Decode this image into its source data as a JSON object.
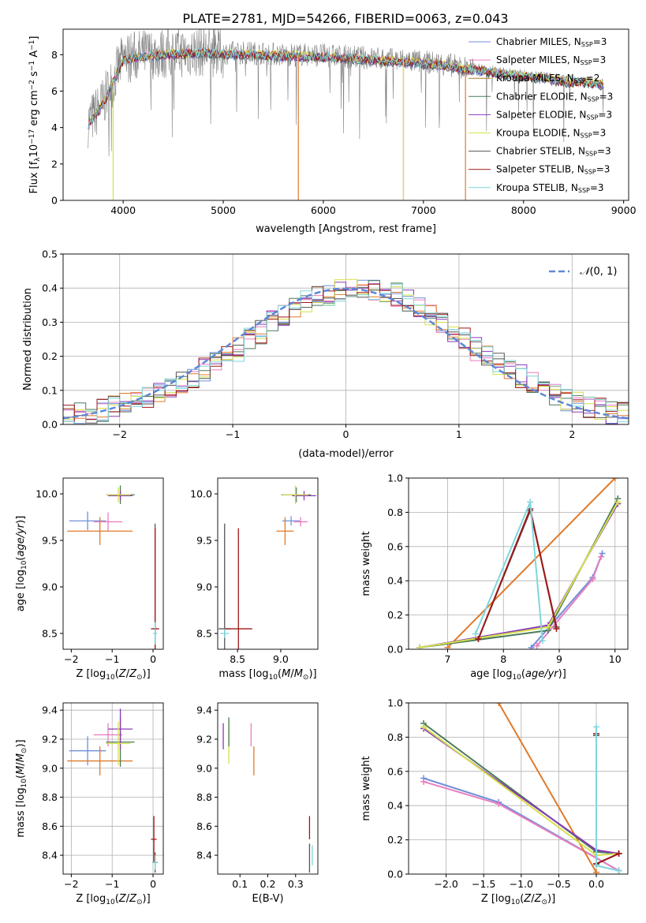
{
  "title": "PLATE=2781, MJD=54266, FIBERID=0063, z=0.043",
  "colors": {
    "Chabrier MILES": "#6f8fdc",
    "Salpeter MILES": "#e87fc0",
    "Kroupa MILES": "#b07c1a",
    "Chabrier ELODIE": "#4a7a5a",
    "Salpeter ELODIE": "#8a3ab8",
    "Kroupa ELODIE": "#d6e04a",
    "Chabrier STELIB": "#555555",
    "Salpeter STELIB": "#a01818",
    "Kroupa STELIB": "#7fd6dc",
    "data": "#808080",
    "orange": "#e07a2a",
    "gaussian": "#5f87d6",
    "grid": "#b0b0b0"
  },
  "chart_data": [
    {
      "type": "line",
      "title": "PLATE=2781, MJD=54266, FIBERID=0063, z=0.043",
      "xlabel": "wavelength [Angstrom, rest frame]",
      "ylabel": "Flux [f_λ 10^-17 erg cm^-2 s^-1 A^-1]",
      "xlim": [
        3400,
        9050
      ],
      "ylim": [
        0,
        9.4
      ],
      "xticks": [
        4000,
        5000,
        6000,
        7000,
        8000,
        9000
      ],
      "yticks": [
        0,
        2,
        4,
        6,
        8
      ],
      "grid": false,
      "legend_position": "top-right",
      "legend": [
        {
          "label": "Chabrier MILES, N",
          "sub": "SSP",
          "suffix": "=3"
        },
        {
          "label": "Salpeter MILES, N",
          "sub": "SSP",
          "suffix": "=3"
        },
        {
          "label": "Kroupa MILES, N",
          "sub": "SSP",
          "suffix": "=2"
        },
        {
          "label": "Chabrier ELODIE, N",
          "sub": "SSP",
          "suffix": "=3"
        },
        {
          "label": "Salpeter ELODIE, N",
          "sub": "SSP",
          "suffix": "=3"
        },
        {
          "label": "Kroupa ELODIE, N",
          "sub": "SSP",
          "suffix": "=3"
        },
        {
          "label": "Chabrier STELIB, N",
          "sub": "SSP",
          "suffix": "=3"
        },
        {
          "label": "Salpeter STELIB, N",
          "sub": "SSP",
          "suffix": "=3"
        },
        {
          "label": "Kroupa STELIB, N",
          "sub": "SSP",
          "suffix": "=3"
        }
      ],
      "continuum": {
        "x": [
          3650,
          3700,
          3800,
          3900,
          4000,
          4200,
          4500,
          4800,
          5000,
          5300,
          5600,
          5900,
          6200,
          6500,
          6800,
          7000,
          7200,
          7400,
          7600,
          7800,
          8000,
          8200,
          8400,
          8600,
          8800
        ],
        "y": [
          4.3,
          4.6,
          5.4,
          6.6,
          7.8,
          8.0,
          8.1,
          8.2,
          8.1,
          8.1,
          8.0,
          8.0,
          7.9,
          7.8,
          7.7,
          7.6,
          7.5,
          7.3,
          7.2,
          7.0,
          6.9,
          6.8,
          6.6,
          6.6,
          6.4
        ]
      }
    },
    {
      "type": "line",
      "xlabel": "(data-model)/error",
      "ylabel": "Normed distribution",
      "xlim": [
        -2.5,
        2.5
      ],
      "ylim": [
        0,
        0.5
      ],
      "xticks": [
        -2,
        -1,
        0,
        1,
        2
      ],
      "yticks": [
        0.0,
        0.1,
        0.2,
        0.3,
        0.4,
        0.5
      ],
      "grid": true,
      "legend_position": "top-right",
      "legend": [
        {
          "label": "N(0,1)"
        }
      ],
      "bin_width": 0.1,
      "bins_start": -2.5,
      "reference_histogram": [
        0.025,
        0.03,
        0.035,
        0.04,
        0.05,
        0.06,
        0.065,
        0.08,
        0.09,
        0.11,
        0.125,
        0.14,
        0.16,
        0.18,
        0.2,
        0.22,
        0.25,
        0.27,
        0.3,
        0.32,
        0.34,
        0.36,
        0.37,
        0.38,
        0.39,
        0.4,
        0.405,
        0.4,
        0.39,
        0.38,
        0.36,
        0.34,
        0.32,
        0.3,
        0.27,
        0.25,
        0.22,
        0.2,
        0.18,
        0.16,
        0.14,
        0.12,
        0.1,
        0.09,
        0.075,
        0.065,
        0.055,
        0.045,
        0.035,
        0.03
      ]
    },
    {
      "type": "scatter",
      "xlabel": "Z [log10(Z/Z_sun)]",
      "ylabel": "age [log10(age/yr)]",
      "xlim": [
        -2.2,
        0.25
      ],
      "ylim": [
        8.33,
        10.17
      ],
      "xticks": [
        -2,
        -1,
        0
      ],
      "yticks": [
        8.5,
        9.0,
        9.5,
        10.0
      ],
      "grid": false,
      "points": [
        {
          "series": "Chabrier MILES",
          "x": -1.6,
          "y": 9.71,
          "xerr": 0.45,
          "yerr": 0.1
        },
        {
          "series": "Salpeter MILES",
          "x": -1.1,
          "y": 9.7,
          "xerr": 0.35,
          "yerr": 0.1
        },
        {
          "series": "Kroupa MILES",
          "x": -1.3,
          "y": 9.6,
          "xerr": 0.8,
          "yerr": 0.15
        },
        {
          "series": "Chabrier ELODIE",
          "x": -0.8,
          "y": 9.99,
          "xerr": 0.35,
          "yerr": 0.1
        },
        {
          "series": "Salpeter ELODIE",
          "x": -0.8,
          "y": 9.98,
          "xerr": 0.3,
          "yerr": 0.05
        },
        {
          "series": "Kroupa ELODIE",
          "x": -0.85,
          "y": 9.99,
          "xerr": 0.3,
          "yerr": 0.08
        },
        {
          "series": "Chabrier STELIB",
          "x": 0.05,
          "y": 8.55,
          "xerr": 0.05,
          "yerr": 1.13
        },
        {
          "series": "Salpeter STELIB",
          "x": 0.05,
          "y": 8.55,
          "xerr": 0.1,
          "yerr": 1.08
        },
        {
          "series": "Kroupa STELIB",
          "x": 0.05,
          "y": 8.5,
          "xerr": 0.05,
          "yerr": 0.12
        }
      ]
    },
    {
      "type": "scatter",
      "xlabel": "mass [log10(M/M_sun)]",
      "ylabel": "",
      "xlim": [
        8.27,
        9.43
      ],
      "ylim": [
        8.33,
        10.17
      ],
      "xticks": [
        8.5,
        9.0
      ],
      "yticks": [
        8.5,
        9.0,
        9.5,
        10.0
      ],
      "grid": false,
      "points": [
        {
          "series": "Chabrier MILES",
          "x": 9.12,
          "y": 9.71,
          "xerr": 0.1,
          "yerr": 0.05
        },
        {
          "series": "Salpeter MILES",
          "x": 9.23,
          "y": 9.7,
          "xerr": 0.08,
          "yerr": 0.05
        },
        {
          "series": "Kroupa MILES",
          "x": 9.05,
          "y": 9.6,
          "xerr": 0.1,
          "yerr": 0.15
        },
        {
          "series": "Chabrier ELODIE",
          "x": 9.18,
          "y": 9.99,
          "xerr": 0.17,
          "yerr": 0.08
        },
        {
          "series": "Salpeter ELODIE",
          "x": 9.27,
          "y": 9.98,
          "xerr": 0.14,
          "yerr": 0.05
        },
        {
          "series": "Kroupa ELODIE",
          "x": 9.17,
          "y": 9.99,
          "xerr": 0.15,
          "yerr": 0.1
        },
        {
          "series": "Chabrier STELIB",
          "x": 8.35,
          "y": 8.55,
          "xerr": 0.07,
          "yerr": 1.13
        },
        {
          "series": "Salpeter STELIB",
          "x": 8.51,
          "y": 8.55,
          "xerr": 0.16,
          "yerr": 1.08
        },
        {
          "series": "Kroupa STELIB",
          "x": 8.35,
          "y": 8.5,
          "xerr": 0.05,
          "yerr": 0.05
        }
      ]
    },
    {
      "type": "line",
      "xlabel": "age [log10(age/yr)]",
      "ylabel": "mass weight",
      "xlim": [
        6.3,
        10.23
      ],
      "ylim": [
        0,
        1.0
      ],
      "xticks": [
        7,
        8,
        9,
        10
      ],
      "yticks": [
        0.0,
        0.2,
        0.4,
        0.6,
        0.8,
        1.0
      ],
      "grid": true,
      "series": [
        {
          "name": "Chabrier MILES",
          "x": [
            8.5,
            9.6,
            9.77
          ],
          "y": [
            0.01,
            0.42,
            0.56
          ]
        },
        {
          "name": "Salpeter MILES",
          "x": [
            8.6,
            9.6,
            9.75
          ],
          "y": [
            0.02,
            0.41,
            0.54
          ]
        },
        {
          "name": "Kroupa MILES",
          "x": [
            7.0,
            10.0
          ],
          "y": [
            0.01,
            1.0
          ]
        },
        {
          "name": "Chabrier ELODIE",
          "x": [
            6.5,
            8.8,
            10.05
          ],
          "y": [
            0.01,
            0.11,
            0.88
          ]
        },
        {
          "name": "Salpeter ELODIE",
          "x": [
            6.5,
            8.8,
            10.05
          ],
          "y": [
            0.01,
            0.14,
            0.85
          ]
        },
        {
          "name": "Kroupa ELODIE",
          "x": [
            6.5,
            8.8,
            10.05
          ],
          "y": [
            0.01,
            0.13,
            0.86
          ]
        },
        {
          "name": "Chabrier STELIB",
          "x": [
            7.55,
            8.48,
            8.95
          ],
          "y": [
            0.06,
            0.81,
            0.13
          ]
        },
        {
          "name": "Salpeter STELIB",
          "x": [
            7.55,
            8.48,
            8.95
          ],
          "y": [
            0.06,
            0.82,
            0.12
          ]
        },
        {
          "name": "Kroupa STELIB",
          "x": [
            7.5,
            8.48,
            8.7
          ],
          "y": [
            0.09,
            0.86,
            0.05
          ]
        }
      ]
    },
    {
      "type": "scatter",
      "xlabel": "Z [log10(Z/Z_sun)]",
      "ylabel": "mass [log10(M/M_sun)]",
      "xlim": [
        -2.2,
        0.25
      ],
      "ylim": [
        8.27,
        9.45
      ],
      "xticks": [
        -2,
        -1,
        0
      ],
      "yticks": [
        8.4,
        8.6,
        8.8,
        9.0,
        9.2,
        9.4
      ],
      "grid": true,
      "points": [
        {
          "series": "Chabrier MILES",
          "x": -1.6,
          "y": 9.12,
          "xerr": 0.45,
          "yerr": 0.1
        },
        {
          "series": "Salpeter MILES",
          "x": -1.1,
          "y": 9.23,
          "xerr": 0.35,
          "yerr": 0.08
        },
        {
          "series": "Kroupa MILES",
          "x": -1.3,
          "y": 9.05,
          "xerr": 0.8,
          "yerr": 0.1
        },
        {
          "series": "Chabrier ELODIE",
          "x": -0.8,
          "y": 9.18,
          "xerr": 0.35,
          "yerr": 0.17
        },
        {
          "series": "Salpeter ELODIE",
          "x": -0.8,
          "y": 9.27,
          "xerr": 0.3,
          "yerr": 0.14
        },
        {
          "series": "Kroupa ELODIE",
          "x": -0.85,
          "y": 9.17,
          "xerr": 0.3,
          "yerr": 0.15
        },
        {
          "series": "Chabrier STELIB",
          "x": 0.05,
          "y": 8.35,
          "xerr": 0.06,
          "yerr": 0.07
        },
        {
          "series": "Salpeter STELIB",
          "x": 0.02,
          "y": 8.51,
          "xerr": 0.07,
          "yerr": 0.16
        },
        {
          "series": "Kroupa STELIB",
          "x": 0.05,
          "y": 8.35,
          "xerr": 0.05,
          "yerr": 0.05
        }
      ]
    },
    {
      "type": "scatter",
      "xlabel": "E(B-V)",
      "ylabel": "",
      "xlim": [
        0.02,
        0.38
      ],
      "ylim": [
        8.27,
        9.45
      ],
      "xticks": [
        0.1,
        0.2,
        0.3
      ],
      "yticks": [
        8.4,
        8.6,
        8.8,
        9.0,
        9.2,
        9.4
      ],
      "grid": false,
      "points": [
        {
          "series": "Salpeter MILES",
          "x": 0.14,
          "y": 9.23,
          "xerr": 0,
          "yerr": 0.08
        },
        {
          "series": "Kroupa MILES",
          "x": 0.15,
          "y": 9.05,
          "xerr": 0,
          "yerr": 0.1
        },
        {
          "series": "Salpeter ELODIE",
          "x": 0.04,
          "y": 9.22,
          "xerr": 0,
          "yerr": 0.09
        },
        {
          "series": "Kroupa ELODIE",
          "x": 0.06,
          "y": 9.18,
          "xerr": 0,
          "yerr": 0.15
        },
        {
          "series": "Chabrier ELODIE",
          "x": 0.06,
          "y": 9.25,
          "xerr": 0,
          "yerr": 0.1
        },
        {
          "series": "Chabrier STELIB",
          "x": 0.35,
          "y": 8.38,
          "xerr": 0,
          "yerr": 0.1
        },
        {
          "series": "Salpeter STELIB",
          "x": 0.35,
          "y": 8.59,
          "xerr": 0,
          "yerr": 0.08
        },
        {
          "series": "Kroupa STELIB",
          "x": 0.36,
          "y": 8.4,
          "xerr": 0,
          "yerr": 0.07
        }
      ]
    },
    {
      "type": "line",
      "xlabel": "Z [log10(Z/Z_sun)]",
      "ylabel": "mass weight",
      "xlim": [
        -2.5,
        0.42
      ],
      "ylim": [
        0,
        1.0
      ],
      "xticks": [
        -2.0,
        -1.5,
        -1.0,
        -0.5,
        0.0
      ],
      "yticks": [
        0.0,
        0.2,
        0.4,
        0.6,
        0.8,
        1.0
      ],
      "grid": true,
      "series": [
        {
          "name": "Chabrier MILES",
          "x": [
            -2.3,
            -1.3,
            0.3
          ],
          "y": [
            0.56,
            0.42,
            0.02
          ]
        },
        {
          "name": "Salpeter MILES",
          "x": [
            -2.3,
            -1.3,
            0.3
          ],
          "y": [
            0.54,
            0.41,
            0.02
          ]
        },
        {
          "name": "Kroupa MILES",
          "x": [
            -1.3,
            0.0
          ],
          "y": [
            1.0,
            0.01
          ]
        },
        {
          "name": "Chabrier ELODIE",
          "x": [
            -2.3,
            0.0,
            0.3
          ],
          "y": [
            0.88,
            0.13,
            0.12
          ]
        },
        {
          "name": "Salpeter ELODIE",
          "x": [
            -2.3,
            0.0,
            0.3
          ],
          "y": [
            0.85,
            0.14,
            0.12
          ]
        },
        {
          "name": "Kroupa ELODIE",
          "x": [
            -2.3,
            0.0,
            0.3
          ],
          "y": [
            0.86,
            0.11,
            0.12
          ]
        },
        {
          "name": "Chabrier STELIB",
          "x": [
            0.0,
            0.0,
            0.3
          ],
          "y": [
            0.81,
            0.06,
            0.12
          ]
        },
        {
          "name": "Salpeter STELIB",
          "x": [
            0.0,
            0.0,
            0.3
          ],
          "y": [
            0.82,
            0.06,
            0.12
          ]
        },
        {
          "name": "Kroupa STELIB",
          "x": [
            0.0,
            0.0,
            0.3
          ],
          "y": [
            0.86,
            0.05,
            0.02
          ]
        }
      ]
    }
  ]
}
